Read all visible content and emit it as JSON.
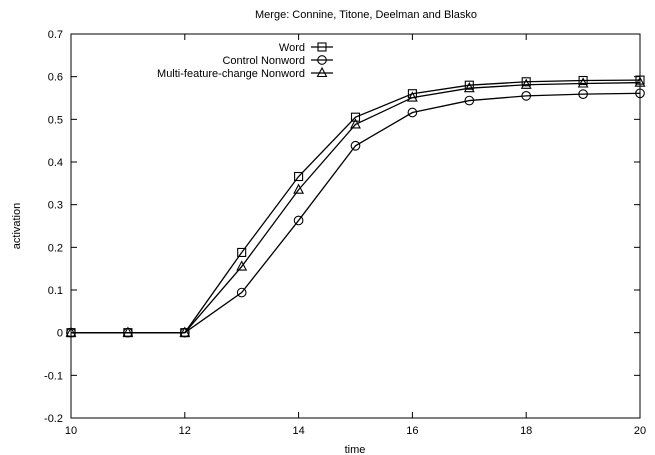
{
  "chart_data": {
    "type": "line",
    "title": "Merge: Connine, Titone, Deelman and Blasko",
    "xlabel": "time",
    "ylabel": "activation",
    "xlim": [
      10,
      20
    ],
    "ylim": [
      -0.2,
      0.7
    ],
    "x_ticks": [
      "10",
      "12",
      "14",
      "16",
      "18",
      "20"
    ],
    "y_ticks": [
      "-0.2",
      "-0.1",
      "0",
      "0.1",
      "0.2",
      "0.3",
      "0.4",
      "0.5",
      "0.6",
      "0.7"
    ],
    "legend_position": "top-center",
    "grid": false,
    "x": [
      10,
      11,
      12,
      13,
      14,
      15,
      16,
      17,
      18,
      19,
      20
    ],
    "series": [
      {
        "name": "Word",
        "marker": "square",
        "color": "#000000",
        "values": [
          0,
          0,
          0,
          0.188,
          0.366,
          0.505,
          0.56,
          0.58,
          0.588,
          0.591,
          0.592
        ]
      },
      {
        "name": "Control Nonword",
        "marker": "circle",
        "color": "#000000",
        "values": [
          0,
          0,
          0,
          0.094,
          0.263,
          0.438,
          0.516,
          0.544,
          0.555,
          0.559,
          0.561
        ]
      },
      {
        "name": "Multi-feature-change Nonword",
        "marker": "triangle",
        "color": "#000000",
        "values": [
          0,
          0,
          0,
          0.155,
          0.335,
          0.488,
          0.551,
          0.573,
          0.581,
          0.584,
          0.586
        ]
      }
    ]
  }
}
